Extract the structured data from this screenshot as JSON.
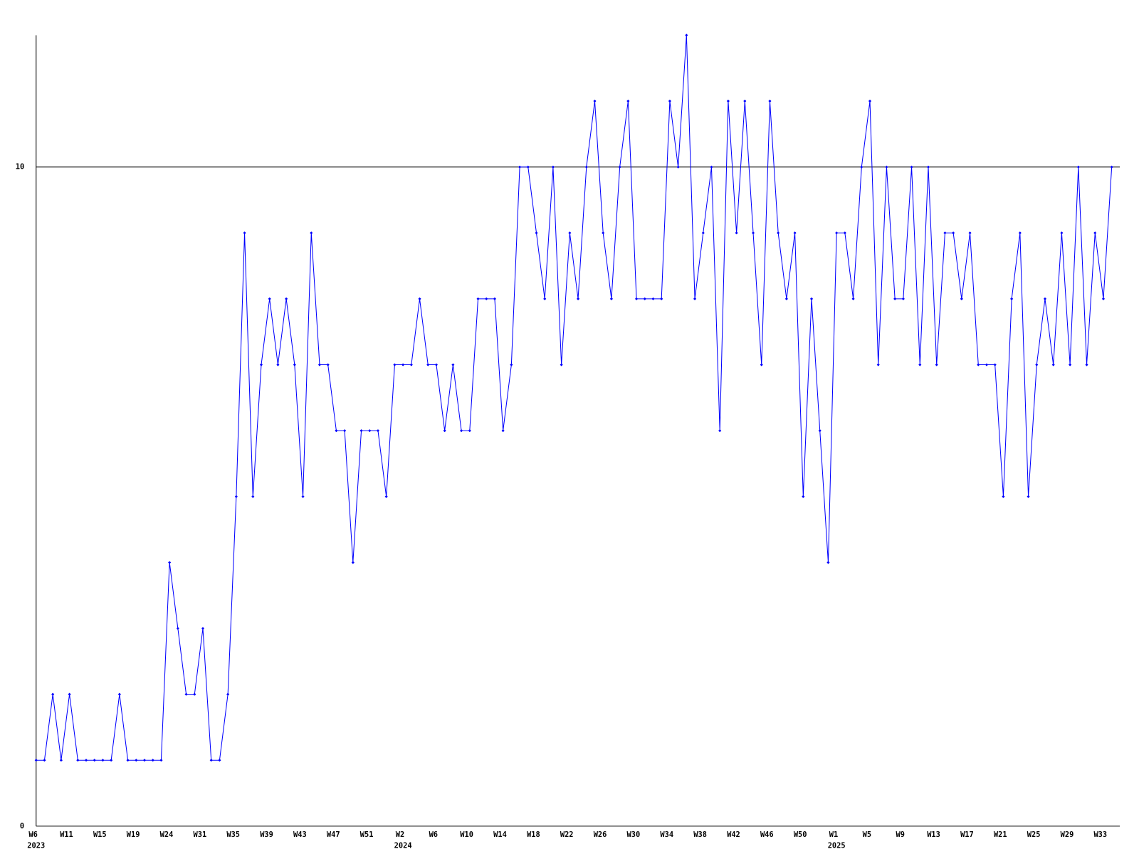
{
  "chart_data": {
    "type": "line",
    "categories": [
      "W6",
      null,
      null,
      null,
      "W11",
      null,
      null,
      null,
      "W15",
      null,
      null,
      null,
      "W19",
      null,
      null,
      null,
      "W24",
      null,
      null,
      null,
      "W31",
      null,
      null,
      null,
      "W35",
      null,
      null,
      null,
      "W39",
      null,
      null,
      null,
      "W43",
      null,
      null,
      null,
      "W47",
      null,
      null,
      null,
      "W51",
      null,
      null,
      null,
      "W2",
      null,
      null,
      null,
      "W6",
      null,
      null,
      null,
      "W10",
      null,
      null,
      null,
      "W14",
      null,
      null,
      null,
      "W18",
      null,
      null,
      null,
      "W22",
      null,
      null,
      null,
      "W26",
      null,
      null,
      null,
      "W30",
      null,
      null,
      null,
      "W34",
      null,
      null,
      null,
      "W38",
      null,
      null,
      null,
      "W42",
      null,
      null,
      null,
      "W46",
      null,
      null,
      null,
      "W50",
      null,
      null,
      null,
      "W1",
      null,
      null,
      null,
      "W5",
      null,
      null,
      null,
      "W9",
      null,
      null,
      null,
      "W13",
      null,
      null,
      null,
      "W17",
      null,
      null,
      null,
      "W21",
      null,
      null,
      null,
      "W25",
      null,
      null,
      null,
      "W29",
      null,
      null,
      null,
      "W33",
      null
    ],
    "category_years": [
      "2023",
      null,
      null,
      null,
      null,
      null,
      null,
      null,
      null,
      null,
      null,
      null,
      null,
      null,
      null,
      null,
      null,
      null,
      null,
      null,
      null,
      null,
      null,
      null,
      null,
      null,
      null,
      null,
      null,
      null,
      null,
      null,
      null,
      null,
      null,
      null,
      null,
      null,
      null,
      null,
      null,
      null,
      null,
      null,
      "2024",
      null,
      null,
      null,
      null,
      null,
      null,
      null,
      null,
      null,
      null,
      null,
      null,
      null,
      null,
      null,
      null,
      null,
      null,
      null,
      null,
      null,
      null,
      null,
      null,
      null,
      null,
      null,
      null,
      null,
      null,
      null,
      null,
      null,
      null,
      null,
      null,
      null,
      null,
      null,
      null,
      null,
      null,
      null,
      null,
      null,
      null,
      null,
      null,
      null,
      null,
      null,
      "2025",
      null,
      null,
      null,
      null,
      null,
      null,
      null,
      null,
      null,
      null,
      null,
      null,
      null,
      null,
      null,
      null,
      null,
      null,
      null,
      null,
      null,
      null,
      null,
      null,
      null,
      null,
      null,
      null,
      null,
      null,
      null,
      null,
      null
    ],
    "series": [
      {
        "color": "#0000ff",
        "values": [
          1,
          1,
          2,
          1,
          2,
          1,
          1,
          1,
          1,
          1,
          2,
          1,
          1,
          1,
          1,
          1,
          4,
          3,
          2,
          2,
          3,
          1,
          1,
          2,
          5,
          9,
          5,
          7,
          8,
          7,
          8,
          7,
          5,
          9,
          7,
          7,
          6,
          6,
          4,
          6,
          6,
          6,
          5,
          7,
          7,
          7,
          8,
          7,
          7,
          6,
          7,
          6,
          6,
          8,
          8,
          8,
          6,
          7,
          10,
          10,
          9,
          8,
          10,
          7,
          9,
          8,
          10,
          11,
          9,
          8,
          10,
          11,
          8,
          8,
          8,
          8,
          11,
          10,
          12,
          8,
          9,
          10,
          6,
          11,
          9,
          11,
          9,
          7,
          11,
          9,
          8,
          9,
          5,
          8,
          6,
          4,
          9,
          9,
          8,
          10,
          11,
          7,
          10,
          8,
          8,
          10,
          7,
          10,
          7,
          9,
          9,
          8,
          9,
          7,
          7,
          7,
          5,
          8,
          9,
          5,
          7,
          8,
          7,
          9,
          7,
          10,
          7,
          9,
          8,
          10
        ]
      }
    ],
    "ylim": [
      0,
      12
    ],
    "yticks": [
      0,
      10
    ],
    "grid": true
  }
}
